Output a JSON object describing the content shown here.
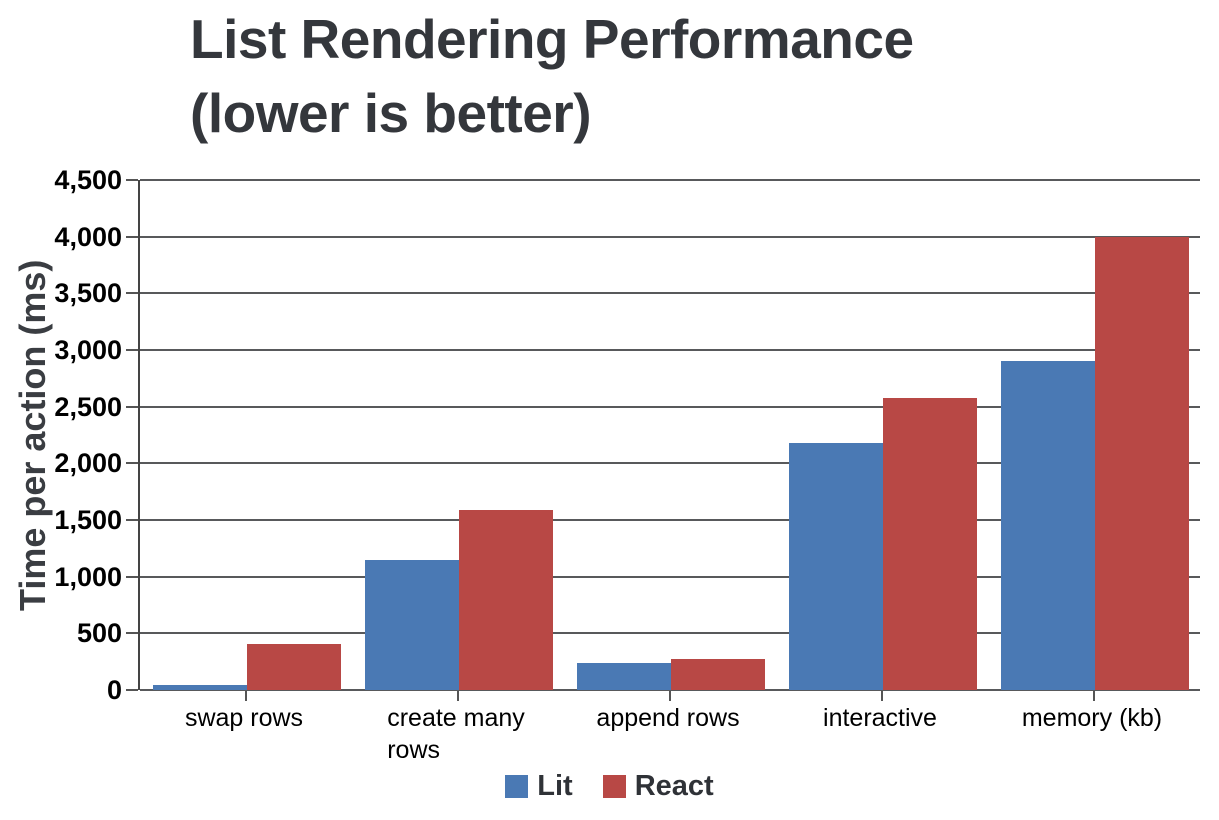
{
  "title": {
    "line1": "List Rendering Performance",
    "line2": "(lower is better)"
  },
  "chart_data": {
    "type": "bar",
    "title": "List Rendering Performance (lower is better)",
    "xlabel": "",
    "ylabel": "Time per action (ms)",
    "categories": [
      "swap rows",
      "create many\nrows",
      "append rows",
      "interactive",
      "memory (kb)"
    ],
    "series": [
      {
        "name": "Lit",
        "color": "#4a79b4",
        "values": [
          40,
          1150,
          240,
          2180,
          2900
        ]
      },
      {
        "name": "React",
        "color": "#b84845",
        "values": [
          410,
          1590,
          270,
          2580,
          4000
        ]
      }
    ],
    "ylim": [
      0,
      4500
    ],
    "y_tick_step": 500,
    "y_tick_labels": [
      "0",
      "500",
      "1,000",
      "1,500",
      "2,000",
      "2,500",
      "3,000",
      "3,500",
      "4,000",
      "4,500"
    ],
    "grid": true,
    "legend_position": "bottom"
  },
  "colors": {
    "gridline": "#58595b",
    "axis_line": "#444444",
    "title_text": "#34373c",
    "tick_text": "#000000"
  }
}
